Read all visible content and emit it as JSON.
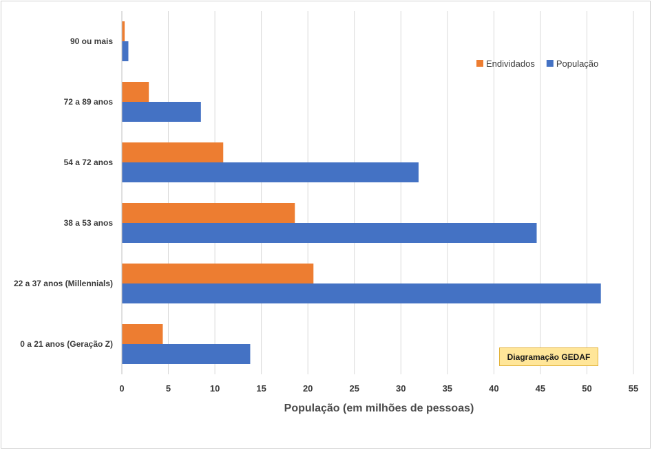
{
  "chart_data": {
    "type": "bar",
    "orientation": "horizontal",
    "categories": [
      "90 ou mais",
      "72 a 89 anos",
      "54 a 72 anos",
      "38 a 53 anos",
      "22 a 37 anos (Millennials)",
      "0 a 21 anos (Geração Z)"
    ],
    "series": [
      {
        "name": "Endividados",
        "color": "#ed7d31",
        "values": [
          0.3,
          2.9,
          10.9,
          18.6,
          20.6,
          4.4
        ]
      },
      {
        "name": "População",
        "color": "#4472c4",
        "values": [
          0.7,
          8.5,
          31.9,
          44.6,
          51.5,
          13.8
        ]
      }
    ],
    "xlabel": "População (em milhões de pessoas)",
    "ylabel": "",
    "xlim": [
      0,
      55
    ],
    "xticks": [
      0,
      5,
      10,
      15,
      20,
      25,
      30,
      35,
      40,
      45,
      50,
      55
    ],
    "grid": "vertical",
    "legend_position": "top-right"
  },
  "watermark": "Diagramação GEDAF"
}
